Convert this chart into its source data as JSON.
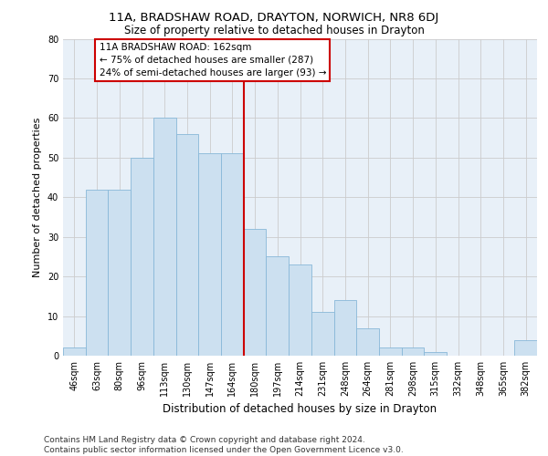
{
  "title_line1": "11A, BRADSHAW ROAD, DRAYTON, NORWICH, NR8 6DJ",
  "title_line2": "Size of property relative to detached houses in Drayton",
  "xlabel": "Distribution of detached houses by size in Drayton",
  "ylabel": "Number of detached properties",
  "categories": [
    "46sqm",
    "63sqm",
    "80sqm",
    "96sqm",
    "113sqm",
    "130sqm",
    "147sqm",
    "164sqm",
    "180sqm",
    "197sqm",
    "214sqm",
    "231sqm",
    "248sqm",
    "264sqm",
    "281sqm",
    "298sqm",
    "315sqm",
    "332sqm",
    "348sqm",
    "365sqm",
    "382sqm"
  ],
  "values": [
    2,
    42,
    42,
    50,
    60,
    56,
    51,
    51,
    32,
    25,
    23,
    11,
    14,
    7,
    2,
    2,
    1,
    0,
    0,
    0,
    4
  ],
  "bar_color": "#cce0f0",
  "bar_edge_color": "#88b8d8",
  "grid_color": "#cccccc",
  "background_color": "#e8f0f8",
  "vline_x": 7.5,
  "vline_color": "#cc0000",
  "annotation_text": "11A BRADSHAW ROAD: 162sqm\n← 75% of detached houses are smaller (287)\n24% of semi-detached houses are larger (93) →",
  "annotation_box_color": "#cc0000",
  "ylim": [
    0,
    80
  ],
  "yticks": [
    0,
    10,
    20,
    30,
    40,
    50,
    60,
    70,
    80
  ],
  "footer_line1": "Contains HM Land Registry data © Crown copyright and database right 2024.",
  "footer_line2": "Contains public sector information licensed under the Open Government Licence v3.0.",
  "title1_fontsize": 9.5,
  "title2_fontsize": 8.5,
  "xlabel_fontsize": 8.5,
  "ylabel_fontsize": 8,
  "tick_fontsize": 7,
  "annotation_fontsize": 7.5,
  "footer_fontsize": 6.5
}
